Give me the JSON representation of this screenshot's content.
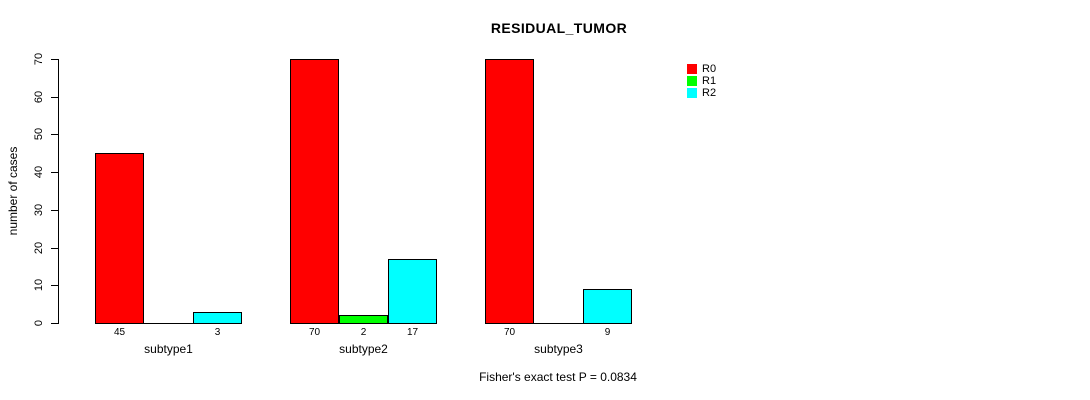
{
  "chart_data": {
    "type": "bar",
    "title": "RESIDUAL_TUMOR",
    "ylabel": "number of cases",
    "xlabel": "",
    "ylim": [
      0,
      70
    ],
    "yticks": [
      0,
      10,
      20,
      30,
      40,
      50,
      60,
      70
    ],
    "categories": [
      "subtype1",
      "subtype2",
      "subtype3"
    ],
    "series": [
      {
        "name": "R0",
        "color": "#ff0000",
        "values": [
          45,
          70,
          70
        ]
      },
      {
        "name": "R1",
        "color": "#00ff00",
        "values": [
          0,
          2,
          0
        ]
      },
      {
        "name": "R2",
        "color": "#00ffff",
        "values": [
          3,
          17,
          9
        ]
      }
    ],
    "bar_value_labels": [
      [
        "45",
        "",
        "3"
      ],
      [
        "70",
        "2",
        "17"
      ],
      [
        "70",
        "",
        "9"
      ]
    ],
    "annotation": "Fisher's exact test P = 0.0834",
    "legend_position": "top-right",
    "grid": false,
    "background_color": "#ffffff",
    "axis_color": "#000000",
    "text_color": "#000000"
  }
}
